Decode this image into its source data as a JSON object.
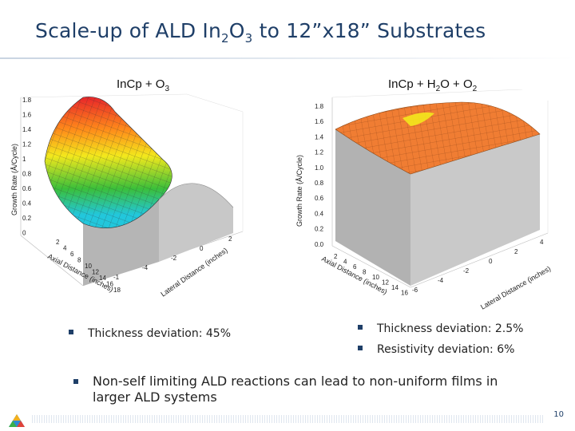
{
  "title": {
    "prefix": "Scale-up of ALD In",
    "sub1": "2",
    "mid": "O",
    "sub2": "3",
    "suffix": " to 12”x18” Substrates"
  },
  "left_plot": {
    "title": {
      "main": "InCp + O",
      "sub": "3"
    },
    "y_axis_label": "Growth Rate (Å/Cycle)",
    "y_ticks": [
      "1.8",
      "1.6",
      "1.4",
      "1.2",
      "1",
      "0.8",
      "0.6",
      "0.4",
      "0.2",
      "0"
    ],
    "axial_label": "Axial Distance (inches)",
    "axial_ticks": [
      "2",
      "4",
      "6",
      "8",
      "10",
      "12",
      "14",
      "16",
      "18"
    ],
    "lateral_label": "Lateral Distance (inches)",
    "lateral_ticks": [
      "2",
      "0",
      "-2",
      "-4",
      "-1"
    ],
    "colors": {
      "peak": "#e8252a",
      "high": "#ff8c1a",
      "mid": "#f3e81c",
      "low": "#3bbf3a",
      "min": "#22c7dc"
    }
  },
  "right_plot": {
    "title": {
      "main": "InCp + H",
      "sub1": "2",
      "mid": "O + O",
      "sub2": "2"
    },
    "y_axis_label": "Growth Rate (Å/Cycle)",
    "y_ticks": [
      "1.8",
      "1.6",
      "1.4",
      "1.2",
      "1.0",
      "0.8",
      "0.6",
      "0.4",
      "0.2",
      "0.0"
    ],
    "axial_label": "Axial Distance (inches)",
    "axial_ticks": [
      "2",
      "4",
      "6",
      "8",
      "10",
      "12",
      "14",
      "16"
    ],
    "lateral_label": "Lateral Distance (inches)",
    "lateral_ticks": [
      "4",
      "2",
      "0",
      "-2",
      "-4",
      "-6"
    ],
    "colors": {
      "surface": "#f07d33",
      "edge": "#f3e81c"
    }
  },
  "bullets": {
    "left": "Thickness deviation: 45%",
    "right1": "Thickness deviation: 2.5%",
    "right2": "Resistivity deviation: 6%",
    "bottom": "Non-self limiting ALD reactions can lead to non-uniform films in larger ALD systems"
  },
  "page_number": "10"
}
